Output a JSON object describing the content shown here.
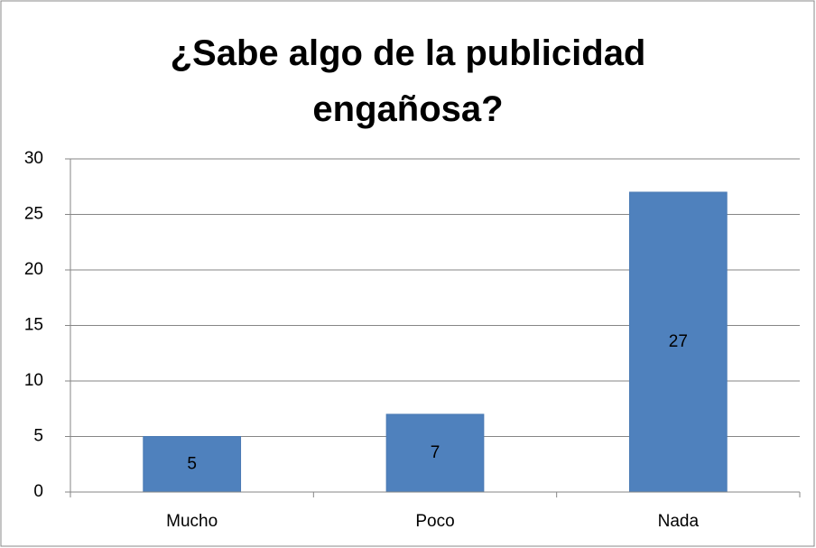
{
  "chart_data": {
    "type": "bar",
    "title": "¿Sabe algo de la publicidad engañosa?",
    "categories": [
      "Mucho",
      "Poco",
      "Nada"
    ],
    "values": [
      5,
      7,
      27
    ],
    "color": "#4f81bd",
    "ylim": [
      0,
      30
    ],
    "yticks": [
      0,
      5,
      10,
      15,
      20,
      25,
      30
    ],
    "grid": true,
    "data_labels": true
  }
}
